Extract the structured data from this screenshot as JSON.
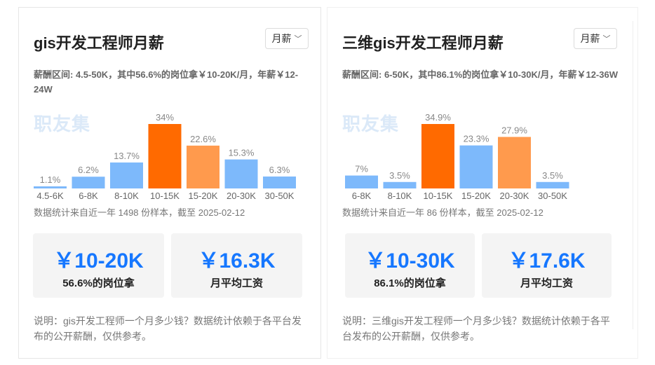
{
  "cards": [
    {
      "title": "gis开发工程师月薪",
      "dropdown": "月薪",
      "range_text": "薪酬区间: 4.5-50K，其中56.6%的岗位拿￥10-20K/月，年薪￥12-24W",
      "watermark": "职友集",
      "source_text": "数据统计来自近一年 1498 份样本，截至 2025-02-12",
      "stat1": {
        "value": "￥10-20K",
        "label": "56.6%的岗位拿"
      },
      "stat2": {
        "value": "￥16.3K",
        "label": "月平均工资"
      },
      "note": "说明：gis开发工程师一个月多少钱？数据统计依赖于各平台发布的公开薪酬，仅供参考。",
      "chart_data": {
        "type": "bar",
        "categories": [
          "4.5-6K",
          "6-8K",
          "8-10K",
          "10-15K",
          "15-20K",
          "20-30K",
          "30-50K"
        ],
        "values": [
          1.1,
          6.2,
          13.7,
          34,
          22.6,
          15.3,
          6.3
        ],
        "value_labels": [
          "1.1%",
          "6.2%",
          "13.7%",
          "34%",
          "22.6%",
          "15.3%",
          "6.3%"
        ],
        "colors": [
          "#7db9fb",
          "#7db9fb",
          "#7db9fb",
          "#ff6a00",
          "#ff9a4d",
          "#7db9fb",
          "#7db9fb"
        ],
        "ylim": [
          0,
          34
        ]
      }
    },
    {
      "title": "三维gis开发工程师月薪",
      "dropdown": "月薪",
      "range_text": "薪酬区间: 6-50K，其中86.1%的岗位拿￥10-30K/月，年薪￥12-36W",
      "watermark": "职友集",
      "source_text": "数据统计来自近一年 86 份样本，截至 2025-02-12",
      "stat1": {
        "value": "￥10-30K",
        "label": "86.1%的岗位拿"
      },
      "stat2": {
        "value": "￥17.6K",
        "label": "月平均工资"
      },
      "note": "说明：三维gis开发工程师一个月多少钱？数据统计依赖于各平台发布的公开薪酬，仅供参考。",
      "chart_data": {
        "type": "bar",
        "categories": [
          "6-8K",
          "8-10K",
          "10-15K",
          "15-20K",
          "20-30K",
          "30-50K"
        ],
        "values": [
          7,
          3.5,
          34.9,
          23.3,
          27.9,
          3.5
        ],
        "value_labels": [
          "7%",
          "3.5%",
          "34.9%",
          "23.3%",
          "27.9%",
          "3.5%"
        ],
        "colors": [
          "#7db9fb",
          "#7db9fb",
          "#ff6a00",
          "#7db9fb",
          "#ff9a4d",
          "#7db9fb"
        ],
        "ylim": [
          0,
          34.9
        ]
      }
    }
  ]
}
